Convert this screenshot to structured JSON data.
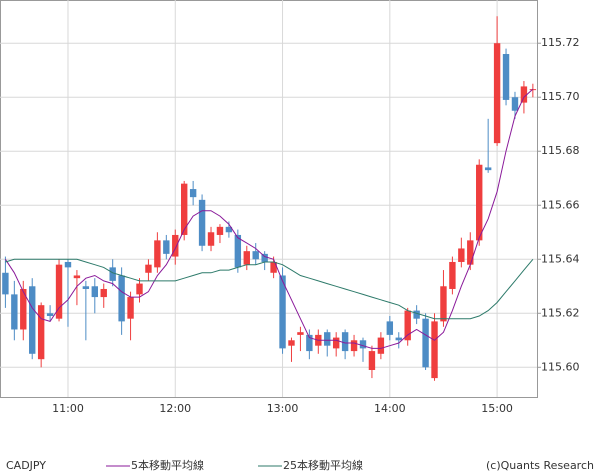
{
  "chart_data": {
    "type": "candlestick",
    "symbol": "CADJPY",
    "credit": "(c)Quants Research",
    "categories": [
      null,
      null,
      null,
      null,
      null,
      null,
      null,
      "11:00",
      null,
      null,
      null,
      null,
      null,
      null,
      null,
      null,
      null,
      null,
      null,
      "12:00",
      null,
      null,
      null,
      null,
      null,
      null,
      null,
      null,
      null,
      null,
      null,
      "13:00",
      null,
      null,
      null,
      null,
      null,
      null,
      null,
      null,
      null,
      null,
      null,
      "14:00",
      null,
      null,
      null,
      null,
      null,
      null,
      null,
      null,
      null,
      null,
      null,
      "15:00",
      null,
      null,
      null,
      null
    ],
    "open": [
      115.635,
      115.627,
      115.614,
      115.63,
      115.603,
      115.62,
      115.618,
      115.639,
      115.633,
      115.63,
      115.63,
      115.626,
      115.637,
      115.634,
      115.618,
      115.627,
      115.635,
      115.637,
      115.647,
      115.641,
      115.649,
      115.666,
      115.662,
      115.645,
      115.649,
      115.652,
      115.649,
      115.638,
      115.643,
      115.642,
      115.635,
      115.634,
      115.608,
      115.612,
      115.612,
      115.608,
      115.613,
      115.607,
      115.613,
      115.606,
      115.61,
      115.599,
      115.605,
      115.617,
      115.611,
      115.61,
      115.621,
      115.618,
      115.596,
      115.617,
      115.629,
      115.639,
      115.638,
      115.647,
      115.674,
      115.683,
      115.716,
      115.7,
      115.698,
      115.703
    ],
    "high": [
      115.641,
      115.632,
      115.632,
      115.633,
      115.624,
      115.623,
      115.64,
      115.64,
      115.636,
      115.632,
      115.633,
      115.631,
      115.64,
      115.637,
      115.628,
      115.633,
      115.64,
      115.65,
      115.649,
      115.651,
      115.669,
      115.669,
      115.664,
      115.652,
      115.653,
      115.654,
      115.651,
      115.645,
      115.646,
      115.643,
      115.641,
      115.637,
      115.611,
      115.615,
      115.614,
      115.614,
      115.614,
      115.613,
      115.614,
      115.612,
      115.611,
      115.608,
      115.613,
      115.619,
      115.613,
      115.622,
      115.623,
      115.62,
      115.62,
      115.636,
      115.641,
      115.648,
      115.65,
      115.677,
      115.692,
      115.73,
      115.718,
      115.702,
      115.706,
      115.705
    ],
    "low": [
      115.622,
      115.61,
      115.61,
      115.603,
      115.6,
      115.617,
      115.617,
      115.615,
      115.623,
      115.61,
      115.62,
      115.622,
      115.63,
      115.612,
      115.61,
      115.624,
      115.632,
      115.635,
      115.64,
      115.638,
      115.647,
      115.66,
      115.643,
      115.643,
      115.646,
      115.648,
      115.635,
      115.636,
      115.638,
      115.636,
      115.633,
      115.605,
      115.602,
      115.606,
      115.603,
      115.605,
      115.604,
      115.604,
      115.603,
      115.604,
      115.602,
      115.596,
      115.603,
      115.61,
      115.607,
      115.608,
      115.616,
      115.599,
      115.595,
      115.615,
      115.627,
      115.637,
      115.636,
      115.645,
      115.672,
      115.682,
      115.697,
      115.692,
      115.694,
      115.7
    ],
    "close": [
      115.627,
      115.614,
      115.629,
      115.605,
      115.623,
      115.619,
      115.638,
      115.637,
      115.634,
      115.629,
      115.626,
      115.629,
      115.632,
      115.617,
      115.626,
      115.631,
      115.638,
      115.647,
      115.642,
      115.649,
      115.668,
      115.663,
      115.645,
      115.65,
      115.652,
      115.65,
      115.637,
      115.643,
      115.64,
      115.639,
      115.639,
      115.607,
      115.61,
      115.613,
      115.606,
      115.612,
      115.608,
      115.611,
      115.606,
      115.61,
      115.607,
      115.606,
      115.611,
      115.612,
      115.61,
      115.621,
      115.618,
      115.6,
      115.617,
      115.63,
      115.639,
      115.644,
      115.647,
      115.675,
      115.673,
      115.72,
      115.699,
      115.695,
      115.704,
      115.703
    ],
    "up_color": "#ef3e3e",
    "down_color": "#4d8cc5",
    "series": [
      {
        "name": "5本移動平均線",
        "color": "#8a1a9a",
        "values": [
          115.64,
          115.635,
          115.628,
          115.622,
          115.618,
          115.617,
          115.622,
          115.625,
          115.63,
          115.633,
          115.634,
          115.632,
          115.631,
          115.628,
          115.626,
          115.626,
          115.628,
          115.634,
          115.638,
          115.644,
          115.651,
          115.656,
          115.658,
          115.658,
          115.656,
          115.653,
          115.648,
          115.646,
          115.644,
          115.641,
          115.64,
          115.632,
          115.625,
          115.618,
          115.611,
          115.61,
          115.61,
          115.61,
          115.609,
          115.609,
          115.608,
          115.607,
          115.607,
          115.608,
          115.609,
          115.612,
          115.614,
          115.612,
          115.61,
          115.613,
          115.621,
          115.63,
          115.638,
          115.648,
          115.655,
          115.665,
          115.68,
          115.693,
          115.7,
          115.703
        ]
      },
      {
        "name": "25本移動平均線",
        "color": "#2d7a6a",
        "values": [
          115.639,
          115.64,
          115.64,
          115.64,
          115.64,
          115.64,
          115.64,
          115.64,
          115.64,
          115.639,
          115.638,
          115.637,
          115.635,
          115.634,
          115.633,
          115.632,
          115.632,
          115.632,
          115.632,
          115.632,
          115.633,
          115.634,
          115.635,
          115.635,
          115.636,
          115.636,
          115.637,
          115.638,
          115.638,
          115.639,
          115.639,
          115.638,
          115.636,
          115.634,
          115.633,
          115.632,
          115.631,
          115.63,
          115.629,
          115.628,
          115.627,
          115.626,
          115.625,
          115.624,
          115.623,
          115.621,
          115.62,
          115.619,
          115.618,
          115.618,
          115.618,
          115.618,
          115.618,
          115.619,
          115.621,
          115.624,
          115.628,
          115.632,
          115.636,
          115.64
        ]
      }
    ],
    "ylim": [
      115.589,
      115.736
    ],
    "yticks": [
      {
        "value": 115.6,
        "label": "115.60"
      },
      {
        "value": 115.62,
        "label": "115.62"
      },
      {
        "value": 115.64,
        "label": "115.64"
      },
      {
        "value": 115.66,
        "label": "115.66"
      },
      {
        "value": 115.68,
        "label": "115.68"
      },
      {
        "value": 115.7,
        "label": "115.70"
      },
      {
        "value": 115.72,
        "label": "115.72"
      }
    ],
    "grid": true
  }
}
